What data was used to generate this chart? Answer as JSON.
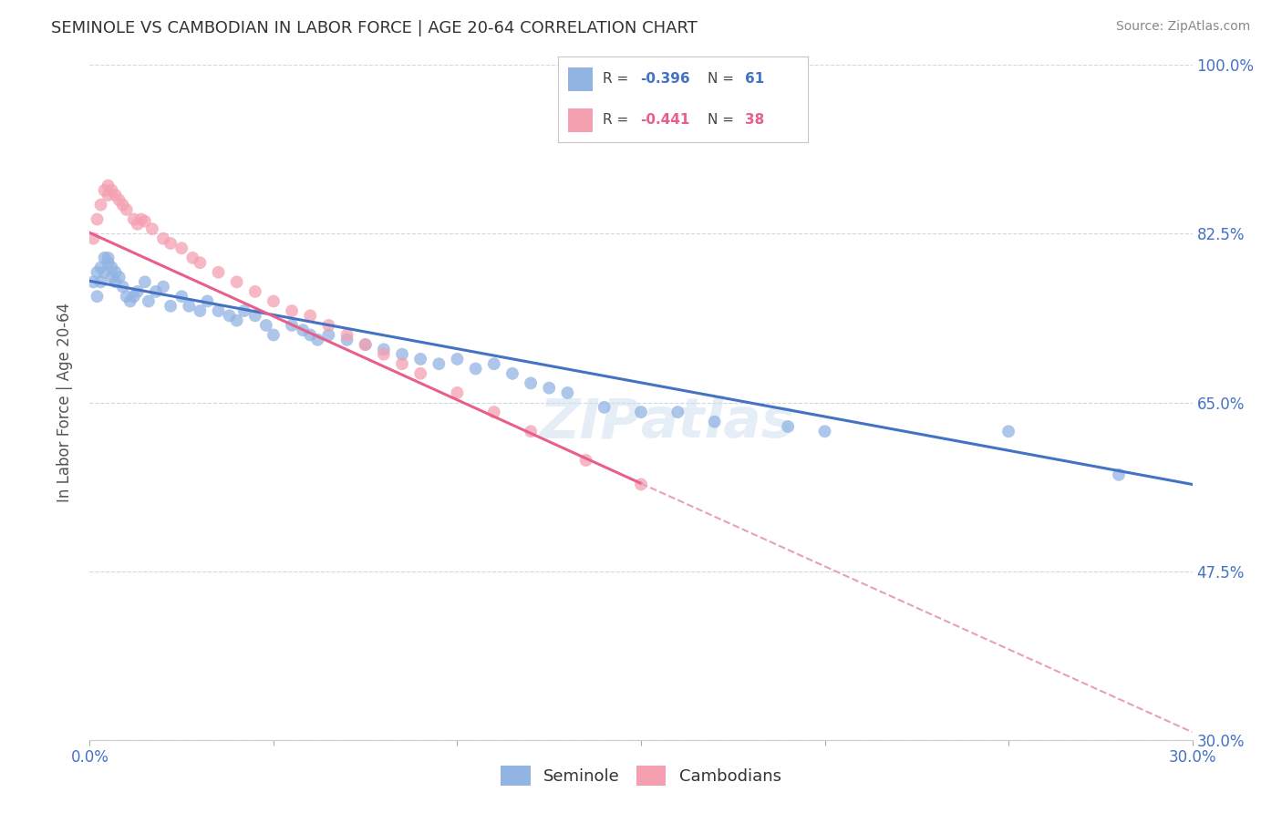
{
  "title": "SEMINOLE VS CAMBODIAN IN LABOR FORCE | AGE 20-64 CORRELATION CHART",
  "source": "Source: ZipAtlas.com",
  "ylabel": "In Labor Force | Age 20-64",
  "watermark": "ZIPAtlas",
  "x_min": 0.0,
  "x_max": 0.3,
  "y_min": 0.3,
  "y_max": 1.0,
  "x_ticks": [
    0.0,
    0.05,
    0.1,
    0.15,
    0.2,
    0.25,
    0.3
  ],
  "y_ticks": [
    0.3,
    0.475,
    0.65,
    0.825,
    1.0
  ],
  "y_tick_labels": [
    "30.0%",
    "47.5%",
    "65.0%",
    "82.5%",
    "100.0%"
  ],
  "seminole_R": -0.396,
  "seminole_N": 61,
  "cambodian_R": -0.441,
  "cambodian_N": 38,
  "seminole_color": "#92b4e3",
  "cambodian_color": "#f4a0b0",
  "seminole_line_color": "#4472c4",
  "cambodian_line_color": "#e8608a",
  "trendline_extend_color": "#e8a0b8",
  "background_color": "#ffffff",
  "grid_color": "#c8d4e8",
  "legend_seminole_label": "Seminole",
  "legend_cambodian_label": "Cambodians",
  "seminole_x": [
    0.001,
    0.002,
    0.002,
    0.003,
    0.003,
    0.004,
    0.004,
    0.005,
    0.005,
    0.006,
    0.006,
    0.007,
    0.007,
    0.008,
    0.009,
    0.01,
    0.011,
    0.012,
    0.013,
    0.015,
    0.016,
    0.018,
    0.02,
    0.022,
    0.025,
    0.027,
    0.03,
    0.032,
    0.035,
    0.038,
    0.04,
    0.042,
    0.045,
    0.048,
    0.05,
    0.055,
    0.058,
    0.06,
    0.062,
    0.065,
    0.07,
    0.075,
    0.08,
    0.085,
    0.09,
    0.095,
    0.1,
    0.105,
    0.11,
    0.115,
    0.12,
    0.125,
    0.13,
    0.14,
    0.15,
    0.16,
    0.17,
    0.19,
    0.2,
    0.25,
    0.28
  ],
  "seminole_y": [
    0.775,
    0.785,
    0.76,
    0.79,
    0.775,
    0.8,
    0.785,
    0.8,
    0.795,
    0.79,
    0.78,
    0.785,
    0.775,
    0.78,
    0.77,
    0.76,
    0.755,
    0.76,
    0.765,
    0.775,
    0.755,
    0.765,
    0.77,
    0.75,
    0.76,
    0.75,
    0.745,
    0.755,
    0.745,
    0.74,
    0.735,
    0.745,
    0.74,
    0.73,
    0.72,
    0.73,
    0.725,
    0.72,
    0.715,
    0.72,
    0.715,
    0.71,
    0.705,
    0.7,
    0.695,
    0.69,
    0.695,
    0.685,
    0.69,
    0.68,
    0.67,
    0.665,
    0.66,
    0.645,
    0.64,
    0.64,
    0.63,
    0.625,
    0.62,
    0.62,
    0.575
  ],
  "cambodian_x": [
    0.001,
    0.002,
    0.003,
    0.004,
    0.005,
    0.005,
    0.006,
    0.007,
    0.008,
    0.009,
    0.01,
    0.012,
    0.013,
    0.014,
    0.015,
    0.017,
    0.02,
    0.022,
    0.025,
    0.028,
    0.03,
    0.035,
    0.04,
    0.045,
    0.05,
    0.055,
    0.06,
    0.065,
    0.07,
    0.075,
    0.08,
    0.085,
    0.09,
    0.1,
    0.11,
    0.12,
    0.135,
    0.15
  ],
  "cambodian_y": [
    0.82,
    0.84,
    0.855,
    0.87,
    0.865,
    0.875,
    0.87,
    0.865,
    0.86,
    0.855,
    0.85,
    0.84,
    0.835,
    0.84,
    0.838,
    0.83,
    0.82,
    0.815,
    0.81,
    0.8,
    0.795,
    0.785,
    0.775,
    0.765,
    0.755,
    0.745,
    0.74,
    0.73,
    0.72,
    0.71,
    0.7,
    0.69,
    0.68,
    0.66,
    0.64,
    0.62,
    0.59,
    0.565
  ]
}
